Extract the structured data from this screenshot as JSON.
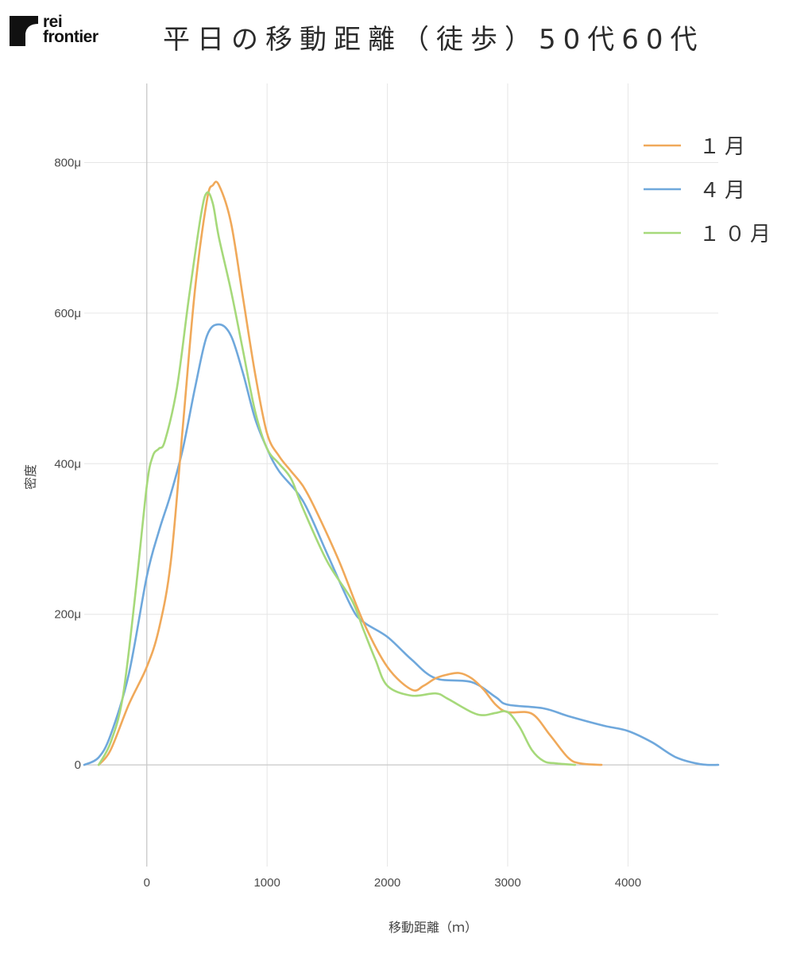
{
  "logo": {
    "line1": "rei",
    "line2": "frontier"
  },
  "chart_data": {
    "type": "line",
    "title": "平日の移動距離（徒歩）50代60代",
    "xlabel": "移動距離（ｍ）",
    "ylabel": "密度",
    "xlim": [
      -520,
      4750
    ],
    "ylim": [
      -0.000135,
      0.000905
    ],
    "x_ticks": [
      0,
      1000,
      2000,
      3000,
      4000
    ],
    "x_tick_labels": [
      "0",
      "1000",
      "2000",
      "3000",
      "4000"
    ],
    "y_ticks": [
      0,
      0.0002,
      0.0004,
      0.0006,
      0.0008
    ],
    "y_tick_labels": [
      "0",
      "200μ",
      "400μ",
      "600μ",
      "800μ"
    ],
    "grid": true,
    "legend_position": "top-right",
    "series": [
      {
        "name": "１月",
        "color": "#f0a95a",
        "points": [
          [
            -400,
            0
          ],
          [
            -300,
            2e-05
          ],
          [
            -150,
            8e-05
          ],
          [
            0,
            0.00013
          ],
          [
            100,
            0.00018
          ],
          [
            200,
            0.00027
          ],
          [
            300,
            0.00045
          ],
          [
            400,
            0.00063
          ],
          [
            500,
            0.00075
          ],
          [
            550,
            0.00077
          ],
          [
            600,
            0.00077
          ],
          [
            700,
            0.00072
          ],
          [
            800,
            0.00062
          ],
          [
            900,
            0.00052
          ],
          [
            1000,
            0.00044
          ],
          [
            1100,
            0.00041
          ],
          [
            1200,
            0.00039
          ],
          [
            1300,
            0.00037
          ],
          [
            1400,
            0.00034
          ],
          [
            1600,
            0.00027
          ],
          [
            1800,
            0.00019
          ],
          [
            2000,
            0.00013
          ],
          [
            2200,
            0.0001
          ],
          [
            2300,
            0.000105
          ],
          [
            2400,
            0.000115
          ],
          [
            2500,
            0.00012
          ],
          [
            2600,
            0.000122
          ],
          [
            2700,
            0.000115
          ],
          [
            2800,
            0.0001
          ],
          [
            2900,
            8e-05
          ],
          [
            3000,
            7e-05
          ],
          [
            3200,
            6.8e-05
          ],
          [
            3350,
            4e-05
          ],
          [
            3500,
            1e-05
          ],
          [
            3600,
            2e-06
          ],
          [
            3780,
            0
          ]
        ]
      },
      {
        "name": "４月",
        "color": "#6fa8dc",
        "points": [
          [
            -520,
            0
          ],
          [
            -400,
            1e-05
          ],
          [
            -300,
            4e-05
          ],
          [
            -150,
            0.00012
          ],
          [
            0,
            0.00025
          ],
          [
            100,
            0.00031
          ],
          [
            200,
            0.00036
          ],
          [
            300,
            0.00042
          ],
          [
            400,
            0.0005
          ],
          [
            500,
            0.00057
          ],
          [
            600,
            0.000585
          ],
          [
            700,
            0.00057
          ],
          [
            800,
            0.00052
          ],
          [
            900,
            0.00046
          ],
          [
            1000,
            0.00042
          ],
          [
            1100,
            0.00039
          ],
          [
            1300,
            0.00035
          ],
          [
            1500,
            0.00028
          ],
          [
            1700,
            0.00021
          ],
          [
            1800,
            0.00019
          ],
          [
            2000,
            0.00017
          ],
          [
            2200,
            0.00014
          ],
          [
            2400,
            0.000115
          ],
          [
            2700,
            0.00011
          ],
          [
            2900,
            9e-05
          ],
          [
            3000,
            8e-05
          ],
          [
            3300,
            7.5e-05
          ],
          [
            3500,
            6.5e-05
          ],
          [
            3800,
            5.2e-05
          ],
          [
            4000,
            4.5e-05
          ],
          [
            4200,
            3e-05
          ],
          [
            4400,
            1e-05
          ],
          [
            4600,
            1e-06
          ],
          [
            4750,
            0
          ]
        ]
      },
      {
        "name": "１０月",
        "color": "#a6d97a",
        "points": [
          [
            -400,
            0
          ],
          [
            -300,
            3e-05
          ],
          [
            -200,
            9e-05
          ],
          [
            -100,
            0.00022
          ],
          [
            0,
            0.00037
          ],
          [
            50,
            0.00041
          ],
          [
            100,
            0.00042
          ],
          [
            150,
            0.00043
          ],
          [
            250,
            0.0005
          ],
          [
            350,
            0.00062
          ],
          [
            450,
            0.00073
          ],
          [
            500,
            0.00076
          ],
          [
            550,
            0.000745
          ],
          [
            600,
            0.0007
          ],
          [
            700,
            0.00063
          ],
          [
            800,
            0.00055
          ],
          [
            900,
            0.00047
          ],
          [
            1000,
            0.00042
          ],
          [
            1100,
            0.0004
          ],
          [
            1200,
            0.00038
          ],
          [
            1300,
            0.00034
          ],
          [
            1500,
            0.00027
          ],
          [
            1700,
            0.00022
          ],
          [
            1800,
            0.00018
          ],
          [
            1900,
            0.00014
          ],
          [
            2000,
            0.000105
          ],
          [
            2200,
            9.2e-05
          ],
          [
            2400,
            9.5e-05
          ],
          [
            2500,
            8.8e-05
          ],
          [
            2700,
            7e-05
          ],
          [
            2800,
            6.6e-05
          ],
          [
            2900,
            6.9e-05
          ],
          [
            3000,
            7e-05
          ],
          [
            3100,
            5e-05
          ],
          [
            3200,
            2e-05
          ],
          [
            3300,
            5e-06
          ],
          [
            3400,
            2e-06
          ],
          [
            3560,
            0
          ]
        ]
      }
    ]
  }
}
